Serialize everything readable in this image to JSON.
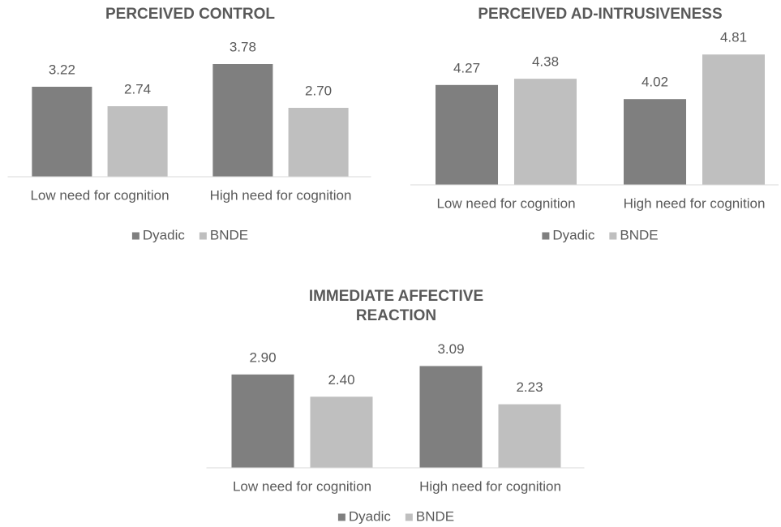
{
  "chart_data": [
    {
      "type": "bar",
      "title": [
        "PERCEIVED CONTROL"
      ],
      "categories": [
        "Low need for cognition",
        "High need for cognition"
      ],
      "series": [
        {
          "name": "Dyadic",
          "color": "#7f7f7f",
          "values": [
            3.22,
            3.78
          ],
          "value_labels": [
            "3.22",
            "3.78"
          ]
        },
        {
          "name": "BNDE",
          "color": "#bfbfbf",
          "values": [
            2.74,
            2.7
          ],
          "value_labels": [
            "2.74",
            "2.70"
          ]
        }
      ],
      "ylim": [
        1,
        4
      ],
      "grid": false,
      "legend": "bottom"
    },
    {
      "type": "bar",
      "title": [
        "PERCEIVED AD-INTRUSIVENESS"
      ],
      "categories": [
        "Low need for cognition",
        "High need for cognition"
      ],
      "series": [
        {
          "name": "Dyadic",
          "color": "#7f7f7f",
          "values": [
            4.27,
            4.02
          ],
          "value_labels": [
            "4.27",
            "4.02"
          ]
        },
        {
          "name": "BNDE",
          "color": "#bfbfbf",
          "values": [
            4.38,
            4.81
          ],
          "value_labels": [
            "4.38",
            "4.81"
          ]
        }
      ],
      "ylim": [
        2.5,
        5
      ],
      "grid": false,
      "legend": "bottom"
    },
    {
      "type": "bar",
      "title": [
        "IMMEDIATE AFFECTIVE",
        "REACTION"
      ],
      "categories": [
        "Low need for cognition",
        "High need for cognition"
      ],
      "series": [
        {
          "name": "Dyadic",
          "color": "#7f7f7f",
          "values": [
            2.9,
            3.09
          ],
          "value_labels": [
            "2.90",
            "3.09"
          ]
        },
        {
          "name": "BNDE",
          "color": "#bfbfbf",
          "values": [
            2.4,
            2.23
          ],
          "value_labels": [
            "2.40",
            "2.23"
          ]
        }
      ],
      "ylim": [
        0.8,
        3.5
      ],
      "grid": false,
      "legend": "bottom"
    }
  ]
}
